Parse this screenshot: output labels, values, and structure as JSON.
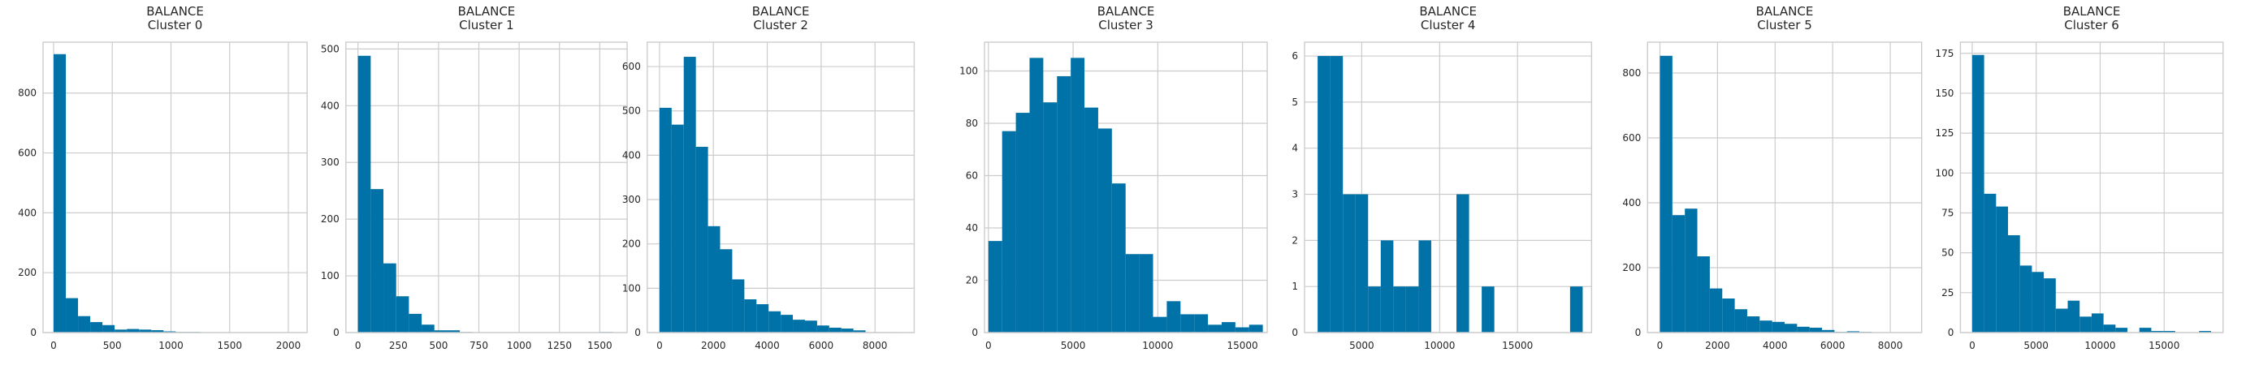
{
  "figure": {
    "background": "#ffffff",
    "bar_color": "#0072a8",
    "grid_color": "#cccccc"
  },
  "chart_data": [
    {
      "type": "bar",
      "title": "BALANCE\nCluster 0",
      "title_lines": [
        "BALANCE",
        "Cluster 0"
      ],
      "xlim": [
        -90,
        2160
      ],
      "ylim": [
        0,
        970
      ],
      "xticks": [
        0,
        500,
        1000,
        1500,
        2000
      ],
      "yticks": [
        0,
        200,
        400,
        600,
        800
      ],
      "bin_edges": [
        0,
        104,
        208,
        312,
        416,
        520,
        624,
        728,
        832,
        936,
        1040,
        1144,
        1248,
        1352,
        1456,
        1560,
        1664,
        1768,
        1872,
        1976,
        2080
      ],
      "values": [
        930,
        115,
        55,
        35,
        25,
        10,
        12,
        10,
        8,
        4,
        2,
        2,
        1,
        1,
        0,
        0,
        0,
        1,
        0,
        1
      ]
    },
    {
      "type": "bar",
      "title": "BALANCE\nCluster 1",
      "title_lines": [
        "BALANCE",
        "Cluster 1"
      ],
      "xlim": [
        -75,
        1670
      ],
      "ylim": [
        0,
        512
      ],
      "xticks": [
        0,
        250,
        500,
        750,
        1000,
        1250,
        1500
      ],
      "yticks": [
        0,
        100,
        200,
        300,
        400,
        500
      ],
      "bin_edges": [
        0,
        79,
        158,
        237,
        316,
        395,
        474,
        553,
        632,
        711,
        790,
        869,
        948,
        1027,
        1106,
        1185,
        1264,
        1343,
        1422,
        1501,
        1580
      ],
      "values": [
        488,
        253,
        122,
        64,
        33,
        14,
        4,
        4,
        1,
        0,
        0,
        0,
        0,
        0,
        0,
        0,
        0,
        0,
        0,
        1
      ]
    },
    {
      "type": "bar",
      "title": "BALANCE\nCluster 2",
      "title_lines": [
        "BALANCE",
        "Cluster 2"
      ],
      "xlim": [
        -455,
        9455
      ],
      "ylim": [
        0,
        655
      ],
      "xticks": [
        0,
        2000,
        4000,
        6000,
        8000
      ],
      "yticks": [
        0,
        100,
        200,
        300,
        400,
        500,
        600
      ],
      "bin_edges": [
        0,
        450,
        900,
        1350,
        1800,
        2250,
        2700,
        3150,
        3600,
        4050,
        4500,
        4950,
        5400,
        5850,
        6300,
        6750,
        7200,
        7650,
        8100,
        8550,
        9000
      ],
      "values": [
        507,
        469,
        622,
        419,
        240,
        188,
        120,
        75,
        64,
        48,
        40,
        29,
        27,
        16,
        11,
        9,
        5,
        1,
        1,
        1
      ]
    },
    {
      "type": "bar",
      "title": "BALANCE\nCluster 3",
      "title_lines": [
        "BALANCE",
        "Cluster 3"
      ],
      "xlim": [
        -230,
        16460
      ],
      "ylim": [
        0,
        111
      ],
      "xticks": [
        0,
        5000,
        10000,
        15000
      ],
      "yticks": [
        0,
        20,
        40,
        60,
        80,
        100
      ],
      "bin_edges": [
        0,
        810,
        1620,
        2430,
        3240,
        4050,
        4860,
        5670,
        6480,
        7290,
        8100,
        8910,
        9720,
        10530,
        11340,
        12150,
        12960,
        13770,
        14580,
        15390,
        16200
      ],
      "values": [
        35,
        77,
        84,
        105,
        88,
        98,
        105,
        86,
        78,
        57,
        30,
        30,
        6,
        12,
        7,
        7,
        3,
        4,
        2,
        3
      ]
    },
    {
      "type": "bar",
      "title": "BALANCE\nCluster 4",
      "title_lines": [
        "BALANCE",
        "Cluster 4"
      ],
      "xlim": [
        1330,
        19750
      ],
      "ylim": [
        0,
        6.3
      ],
      "xticks": [
        5000,
        10000,
        15000
      ],
      "yticks": [
        0,
        1,
        2,
        3,
        4,
        5,
        6
      ],
      "bin_edges": [
        2170,
        2980,
        3790,
        4600,
        5410,
        6220,
        7030,
        7840,
        8650,
        9460,
        10270,
        11080,
        11890,
        12700,
        13510,
        14320,
        15130,
        15940,
        16750,
        17560,
        18370,
        19180
      ],
      "values": [
        6,
        6,
        3,
        3,
        1,
        2,
        1,
        1,
        2,
        0,
        0,
        3,
        0,
        1,
        0,
        0,
        0,
        0,
        0,
        0,
        1
      ]
    },
    {
      "type": "bar",
      "title": "BALANCE\nCluster 5",
      "title_lines": [
        "BALANCE",
        "Cluster 5"
      ],
      "xlim": [
        -430,
        9090
      ],
      "ylim": [
        0,
        895
      ],
      "xticks": [
        0,
        2000,
        4000,
        6000,
        8000
      ],
      "yticks": [
        0,
        200,
        400,
        600,
        800
      ],
      "bin_edges": [
        0,
        433,
        866,
        1299,
        1732,
        2165,
        2598,
        3031,
        3464,
        3897,
        4330,
        4763,
        5196,
        5629,
        6062,
        6495,
        6928,
        7361,
        7794,
        8227,
        8660
      ],
      "values": [
        853,
        362,
        382,
        235,
        136,
        105,
        72,
        50,
        37,
        33,
        27,
        18,
        15,
        8,
        2,
        4,
        2,
        0,
        0,
        1
      ]
    },
    {
      "type": "bar",
      "title": "BALANCE\nCluster 6",
      "title_lines": [
        "BALANCE",
        "Cluster 6"
      ],
      "xlim": [
        -920,
        19600
      ],
      "ylim": [
        0,
        182
      ],
      "xticks": [
        0,
        5000,
        10000,
        15000
      ],
      "yticks": [
        0,
        25,
        50,
        75,
        100,
        125,
        150,
        175
      ],
      "bin_edges": [
        0,
        933,
        1866,
        2799,
        3732,
        4665,
        5598,
        6531,
        7464,
        8397,
        9330,
        10263,
        11196,
        12129,
        13062,
        13995,
        14928,
        15861,
        16794,
        17727,
        18660
      ],
      "values": [
        174,
        87,
        79,
        61,
        42,
        38,
        34,
        15,
        20,
        10,
        12,
        5,
        3,
        0,
        3,
        1,
        1,
        0,
        0,
        1
      ]
    }
  ]
}
